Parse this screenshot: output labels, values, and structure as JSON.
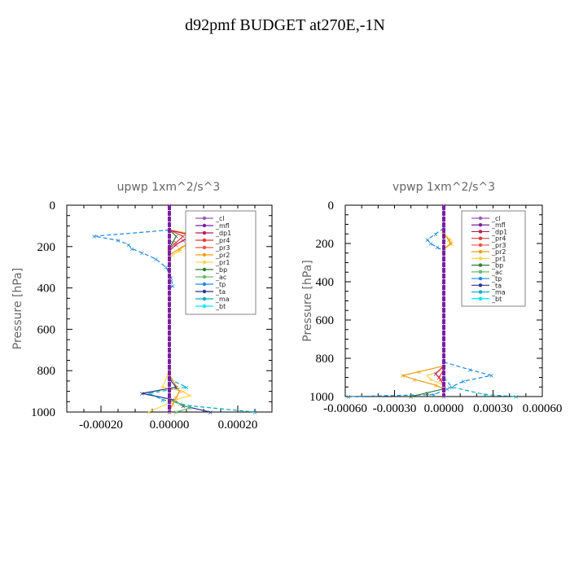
{
  "title": "d92pmf  BUDGET at270E,-1N",
  "legend_entries": [
    "_cl",
    "_mfl",
    "_dp1",
    "_pr4",
    "_pr3",
    "_pr2",
    "_pr1",
    "_bp",
    "_ac",
    "_tp",
    "_ta",
    "_ma",
    "_bt"
  ],
  "legend_colors": [
    "#9b59b6",
    "#7b1fa2",
    "#c2185b",
    "#e53935",
    "#ef5350",
    "#f39c12",
    "#ffd54f",
    "#2e7d32",
    "#66bb6a",
    "#1e88e5",
    "#283593",
    "#00acc1",
    "#00e5ff"
  ],
  "chart_data": [
    {
      "type": "line",
      "title": "upwp    1xm^2/s^3",
      "xlabel": "",
      "ylabel": "Pressure [hPa]",
      "xlim": [
        -0.0003,
        0.0003
      ],
      "ylim": [
        1000,
        0
      ],
      "xticks": [
        "-0.00020",
        "0.00000",
        "0.00020"
      ],
      "xtick_values": [
        -0.0002,
        0,
        0.0002
      ],
      "yticks": [
        "0",
        "200",
        "400",
        "600",
        "800",
        "1000"
      ],
      "ytick_values": [
        0,
        200,
        400,
        600,
        800,
        1000
      ],
      "legend_position": "top-right",
      "series": [
        {
          "name": "_tp",
          "y": [
            120,
            150,
            170,
            190,
            210,
            230,
            260,
            300,
            350,
            390,
            400
          ],
          "x": [
            0.0,
            -0.00022,
            -0.00015,
            -0.00012,
            -0.00011,
            -8e-05,
            -4e-05,
            -1e-05,
            5e-06,
            1e-05,
            0.0
          ]
        },
        {
          "name": "_pr1",
          "y": [
            120,
            140,
            150,
            160,
            180,
            200,
            220,
            240,
            260
          ],
          "x": [
            0.0,
            8e-05,
            0.0001,
            9e-05,
            6e-05,
            4e-05,
            3e-05,
            1e-05,
            0.0
          ]
        },
        {
          "name": "_pr2",
          "y": [
            120,
            140,
            150,
            170,
            190,
            210,
            240
          ],
          "x": [
            0.0,
            6e-05,
            9e-05,
            7e-05,
            5e-05,
            3e-05,
            0.0
          ]
        },
        {
          "name": "_dp1",
          "y": [
            120,
            140,
            150,
            170,
            190,
            220
          ],
          "x": [
            0.0,
            5e-05,
            8e-05,
            4e-05,
            2e-05,
            0.0
          ]
        },
        {
          "name": "_pr4",
          "y": [
            120,
            150,
            180,
            210
          ],
          "x": [
            0.0,
            4e-05,
            2e-05,
            0.0
          ]
        },
        {
          "name": "_bp",
          "y": [
            120,
            150,
            180,
            210
          ],
          "x": [
            0.0,
            2e-05,
            1e-05,
            0.0
          ]
        },
        {
          "name": "_ma",
          "y": [
            840,
            880,
            910,
            940,
            970,
            1000
          ],
          "x": [
            0.0,
            5e-05,
            -6e-05,
            -2e-05,
            6e-05,
            0.00025
          ]
        },
        {
          "name": "_ta",
          "y": [
            840,
            880,
            910,
            940,
            970,
            1000
          ],
          "x": [
            0.0,
            2e-05,
            -8e-05,
            1e-05,
            4e-05,
            0.00012
          ]
        },
        {
          "name": "_pr1",
          "y": [
            800,
            880,
            900,
            920,
            940,
            1000
          ],
          "x": [
            0.0,
            -2e-05,
            4e-05,
            6e-05,
            2e-05,
            -6e-05
          ]
        },
        {
          "name": "_pr2",
          "y": [
            820,
            900,
            930,
            960,
            1000
          ],
          "x": [
            0.0,
            3e-05,
            2e-05,
            1e-05,
            0.0
          ]
        },
        {
          "name": "_ac",
          "y": [
            940,
            960,
            980,
            1000
          ],
          "x": [
            0.0,
            3e-05,
            6e-05,
            2e-05
          ]
        },
        {
          "name": "_cl",
          "y": [
            0,
            1000
          ],
          "x": [
            0.0,
            0.0
          ]
        }
      ]
    },
    {
      "type": "line",
      "title": "vpwp    1xm^2/s^3",
      "xlabel": "",
      "ylabel": "Pressure [hPa]",
      "xlim": [
        -0.0006,
        0.0006
      ],
      "ylim": [
        1000,
        0
      ],
      "xticks": [
        "-0.00060",
        "-0.00030",
        "0.00000",
        "0.00030",
        "0.00060"
      ],
      "xtick_values": [
        -0.0006,
        -0.0003,
        0,
        0.0003,
        0.0006
      ],
      "yticks": [
        "0",
        "200",
        "400",
        "600",
        "800",
        "1000"
      ],
      "ytick_values": [
        0,
        200,
        400,
        600,
        800,
        1000
      ],
      "legend_position": "top-right",
      "series": [
        {
          "name": "_tp",
          "y": [
            120,
            150,
            180,
            200,
            220,
            240
          ],
          "x": [
            0.0,
            -5e-05,
            -0.0001,
            -8e-05,
            -4e-05,
            0.0
          ]
        },
        {
          "name": "_pr1",
          "y": [
            150,
            180,
            200,
            230
          ],
          "x": [
            0.0,
            4e-05,
            5e-05,
            0.0
          ]
        },
        {
          "name": "_pr2",
          "y": [
            150,
            180,
            200,
            230
          ],
          "x": [
            0.0,
            3e-05,
            4e-05,
            0.0
          ]
        },
        {
          "name": "_tp",
          "y": [
            820,
            860,
            890,
            920,
            960,
            990,
            1000
          ],
          "x": [
            0.0,
            0.00016,
            0.00029,
            0.00012,
            2e-05,
            -6e-05,
            -0.00058
          ]
        },
        {
          "name": "_ma",
          "y": [
            900,
            950,
            990,
            1000
          ],
          "x": [
            0.0,
            5e-05,
            0.00025,
            0.00044
          ]
        },
        {
          "name": "_pr2",
          "y": [
            840,
            870,
            890,
            910,
            940,
            960
          ],
          "x": [
            0.0,
            -0.00015,
            -0.00025,
            -0.00018,
            -5e-05,
            0.0
          ]
        },
        {
          "name": "_pr1",
          "y": [
            860,
            890,
            910,
            940
          ],
          "x": [
            0.0,
            -0.0001,
            -8e-05,
            0.0
          ]
        },
        {
          "name": "_dp1",
          "y": [
            840,
            880,
            910,
            940
          ],
          "x": [
            0.0,
            -5e-05,
            -2e-05,
            0.0
          ]
        },
        {
          "name": "_pr4",
          "y": [
            860,
            900,
            940
          ],
          "x": [
            0.0,
            -3e-05,
            0.0
          ]
        },
        {
          "name": "_bp",
          "y": [
            960,
            980,
            1000
          ],
          "x": [
            0.0,
            -0.0001,
            -0.0002
          ]
        },
        {
          "name": "_cl",
          "y": [
            0,
            1000
          ],
          "x": [
            0.0,
            0.0
          ]
        }
      ]
    }
  ]
}
